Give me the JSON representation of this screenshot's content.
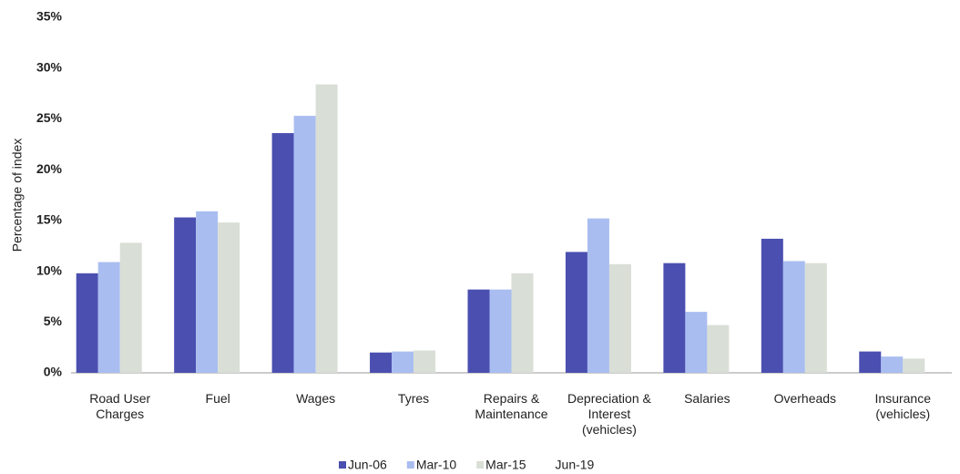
{
  "chart_data": {
    "type": "bar",
    "y_label": "Percentage of index",
    "categories": [
      "Road User Charges",
      "Fuel",
      "Wages",
      "Tyres",
      "Repairs & Maintenance",
      "Depreciation & Interest (vehicles)",
      "Salaries",
      "Overheads",
      "Insurance (vehicles)"
    ],
    "series": [
      {
        "name": "Jun-06",
        "color": "#4b4fb0",
        "values": [
          9.8,
          15.3,
          23.6,
          2.0,
          8.2,
          11.9,
          10.8,
          13.2,
          2.1
        ]
      },
      {
        "name": "Mar-10",
        "color": "#a9bdf0",
        "values": [
          10.9,
          15.9,
          25.3,
          2.1,
          8.2,
          15.2,
          6.0,
          11.0,
          1.6
        ]
      },
      {
        "name": "Mar-15",
        "color": "#d9ded6",
        "values": [
          12.8,
          14.8,
          28.4,
          2.2,
          9.8,
          10.7,
          4.7,
          10.8,
          1.4
        ]
      },
      {
        "name": "Jun-19",
        "color": "#ffffff",
        "values": [
          null,
          null,
          null,
          null,
          null,
          null,
          null,
          null,
          null
        ]
      }
    ],
    "ylim": [
      0,
      35
    ],
    "yticks": [
      {
        "value": 0,
        "label": "0%"
      },
      {
        "value": 5,
        "label": "5%"
      },
      {
        "value": 10,
        "label": "10%"
      },
      {
        "value": 15,
        "label": "15%"
      },
      {
        "value": 20,
        "label": "20%"
      },
      {
        "value": 25,
        "label": "25%"
      },
      {
        "value": 30,
        "label": "30%"
      },
      {
        "value": 35,
        "label": "35%"
      }
    ],
    "grid": false,
    "legend": "bottom"
  }
}
